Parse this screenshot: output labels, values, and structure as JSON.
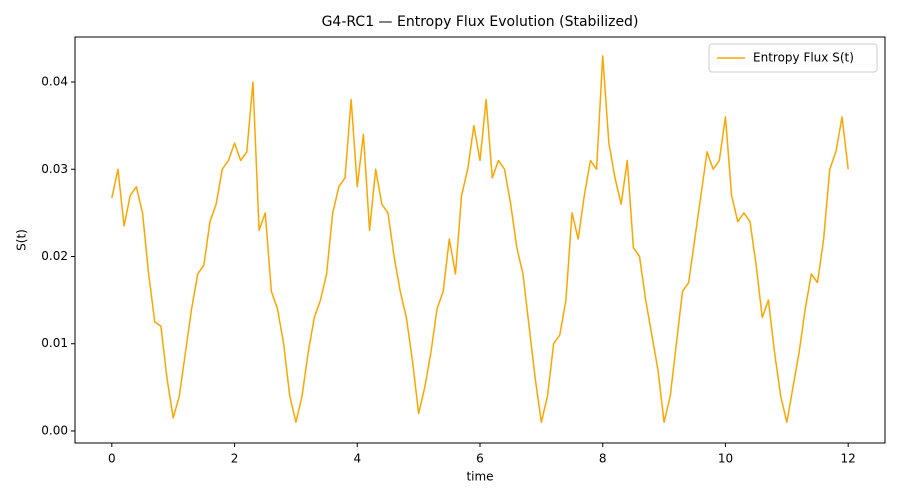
{
  "chart_data": {
    "type": "line",
    "title": "G4-RC1 — Entropy Flux Evolution (Stabilized)",
    "x_label": "time",
    "y_label": "S(t)",
    "x": [
      0,
      0.1,
      0.2,
      0.3,
      0.4,
      0.5,
      0.6,
      0.7,
      0.8,
      0.9,
      1,
      1.1,
      1.2,
      1.3,
      1.4,
      1.5,
      1.6,
      1.7,
      1.8,
      1.9,
      2,
      2.1,
      2.2,
      2.3,
      2.4,
      2.5,
      2.6,
      2.7,
      2.8,
      2.9,
      3,
      3.1,
      3.2,
      3.3,
      3.4,
      3.5,
      3.6,
      3.7,
      3.8,
      3.9,
      4,
      4.1,
      4.2,
      4.3,
      4.4,
      4.5,
      4.6,
      4.7,
      4.8,
      4.9,
      5,
      5.1,
      5.2,
      5.3,
      5.4,
      5.5,
      5.6,
      5.7,
      5.8,
      5.9,
      6,
      6.1,
      6.2,
      6.3,
      6.4,
      6.5,
      6.6,
      6.7,
      6.8,
      6.9,
      7,
      7.1,
      7.2,
      7.3,
      7.4,
      7.5,
      7.6,
      7.7,
      7.8,
      7.9,
      8,
      8.1,
      8.2,
      8.3,
      8.4,
      8.5,
      8.6,
      8.7,
      8.8,
      8.9,
      9,
      9.1,
      9.2,
      9.3,
      9.4,
      9.5,
      9.6,
      9.7,
      9.8,
      9.9,
      10,
      10.1,
      10.2,
      10.3,
      10.4,
      10.5,
      10.6,
      10.7,
      10.8,
      10.9,
      11,
      11.1,
      11.2,
      11.3,
      11.4,
      11.5,
      11.6,
      11.7,
      11.8,
      11.9,
      12
    ],
    "series": [
      {
        "name": "Entropy Flux S(t)",
        "color": "#ffa500",
        "values": [
          0.0267,
          0.03,
          0.0235,
          0.027,
          0.028,
          0.025,
          0.018,
          0.0125,
          0.012,
          0.006,
          0.0015,
          0.004,
          0.009,
          0.014,
          0.018,
          0.019,
          0.024,
          0.026,
          0.03,
          0.031,
          0.033,
          0.031,
          0.032,
          0.04,
          0.023,
          0.025,
          0.016,
          0.014,
          0.01,
          0.004,
          0.001,
          0.004,
          0.009,
          0.013,
          0.015,
          0.018,
          0.025,
          0.028,
          0.029,
          0.038,
          0.028,
          0.034,
          0.023,
          0.03,
          0.026,
          0.025,
          0.02,
          0.016,
          0.013,
          0.008,
          0.002,
          0.005,
          0.009,
          0.014,
          0.016,
          0.022,
          0.018,
          0.027,
          0.03,
          0.035,
          0.031,
          0.038,
          0.029,
          0.031,
          0.03,
          0.026,
          0.021,
          0.018,
          0.012,
          0.006,
          0.001,
          0.004,
          0.01,
          0.011,
          0.015,
          0.025,
          0.022,
          0.027,
          0.031,
          0.03,
          0.043,
          0.033,
          0.029,
          0.026,
          0.031,
          0.021,
          0.02,
          0.015,
          0.011,
          0.007,
          0.001,
          0.004,
          0.01,
          0.016,
          0.017,
          0.022,
          0.027,
          0.032,
          0.03,
          0.031,
          0.036,
          0.027,
          0.024,
          0.025,
          0.024,
          0.019,
          0.013,
          0.015,
          0.009,
          0.004,
          0.001,
          0.005,
          0.009,
          0.014,
          0.018,
          0.017,
          0.022,
          0.03,
          0.032,
          0.036,
          0.03
        ]
      }
    ],
    "xlim": [
      -0.6,
      12.6
    ],
    "ylim": [
      -0.00138,
      0.04516
    ],
    "xticks": [
      0,
      2,
      4,
      6,
      8,
      10,
      12
    ],
    "yticks": [
      {
        "value": 0,
        "label": "0.00"
      },
      0.01,
      0.02,
      0.03,
      0.04
    ],
    "grid": false,
    "legend": "upper right"
  }
}
